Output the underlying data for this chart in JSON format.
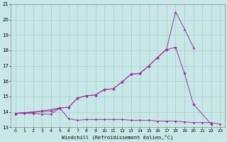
{
  "color": "#993399",
  "bg_color": "#c8e8e8",
  "grid_color": "#aacccc",
  "xlabel": "Windchill (Refroidissement éolien,°C)",
  "xlim": [
    -0.5,
    23.5
  ],
  "ylim": [
    13,
    21
  ],
  "xticks": [
    0,
    1,
    2,
    3,
    4,
    5,
    6,
    7,
    8,
    9,
    10,
    11,
    12,
    13,
    14,
    15,
    16,
    17,
    18,
    19,
    20,
    21,
    22,
    23
  ],
  "yticks": [
    13,
    14,
    15,
    16,
    17,
    18,
    19,
    20,
    21
  ],
  "line1": {
    "x": [
      0,
      1,
      2,
      3,
      4,
      5,
      6,
      7,
      8,
      9,
      10,
      11,
      12,
      13,
      14,
      15,
      16,
      17,
      18,
      19,
      20,
      21,
      22,
      23
    ],
    "y": [
      13.9,
      13.9,
      13.9,
      13.85,
      13.85,
      14.25,
      13.55,
      13.45,
      13.5,
      13.5,
      13.5,
      13.5,
      13.5,
      13.45,
      13.45,
      13.45,
      13.4,
      13.4,
      13.4,
      13.35,
      13.3,
      13.3,
      13.3,
      13.2
    ]
  },
  "line2": {
    "x": [
      0,
      1,
      2,
      3,
      4,
      5,
      6,
      7,
      8,
      9,
      10,
      11,
      12,
      13,
      14,
      15,
      16,
      17,
      18,
      19,
      20,
      22
    ],
    "y": [
      13.9,
      13.95,
      13.95,
      14.05,
      14.05,
      14.25,
      14.3,
      14.9,
      15.05,
      15.1,
      15.45,
      15.5,
      15.95,
      16.45,
      16.5,
      17.0,
      17.55,
      18.05,
      18.2,
      16.5,
      14.5,
      13.2
    ]
  },
  "line3": {
    "x": [
      0,
      3,
      5,
      6,
      7,
      8,
      9,
      10,
      11,
      12,
      13,
      14,
      15,
      16,
      17,
      18,
      19,
      20
    ],
    "y": [
      13.9,
      14.05,
      14.25,
      14.3,
      14.9,
      15.05,
      15.1,
      15.45,
      15.5,
      15.95,
      16.45,
      16.5,
      17.0,
      17.55,
      18.1,
      20.5,
      19.4,
      18.2
    ]
  }
}
